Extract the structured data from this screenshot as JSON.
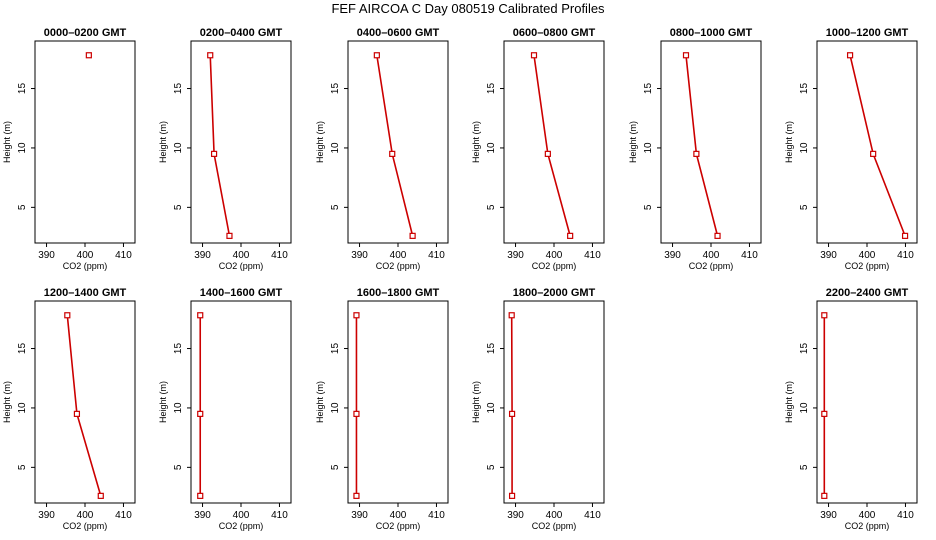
{
  "title": "FEF AIRCOA C  Day 080519  Calibrated Profiles",
  "colors": {
    "series": "#cc0000",
    "axis": "#000000"
  },
  "chart_data": [
    {
      "type": "line",
      "title": "0000–0200 GMT",
      "xlabel": "CO2 (ppm)",
      "ylabel": "Height (m)",
      "xlim": [
        387,
        413
      ],
      "ylim": [
        2,
        19
      ],
      "xticks": [
        390,
        400,
        410
      ],
      "yticks": [
        5,
        10,
        15
      ],
      "x": [
        401.0
      ],
      "y": [
        17.8
      ]
    },
    {
      "type": "line",
      "title": "0200–0400 GMT",
      "xlabel": "CO2 (ppm)",
      "ylabel": "Height (m)",
      "xlim": [
        387,
        413
      ],
      "ylim": [
        2,
        19
      ],
      "xticks": [
        390,
        400,
        410
      ],
      "yticks": [
        5,
        10,
        15
      ],
      "x": [
        392.0,
        393.0,
        397.0
      ],
      "y": [
        17.8,
        9.5,
        2.6
      ]
    },
    {
      "type": "line",
      "title": "0400–0600 GMT",
      "xlabel": "CO2 (ppm)",
      "ylabel": "Height (m)",
      "xlim": [
        387,
        413
      ],
      "ylim": [
        2,
        19
      ],
      "xticks": [
        390,
        400,
        410
      ],
      "yticks": [
        5,
        10,
        15
      ],
      "x": [
        394.5,
        398.5,
        403.8
      ],
      "y": [
        17.8,
        9.5,
        2.6
      ]
    },
    {
      "type": "line",
      "title": "0600–0800 GMT",
      "xlabel": "CO2 (ppm)",
      "ylabel": "Height (m)",
      "xlim": [
        387,
        413
      ],
      "ylim": [
        2,
        19
      ],
      "xticks": [
        390,
        400,
        410
      ],
      "yticks": [
        5,
        10,
        15
      ],
      "x": [
        394.8,
        398.4,
        404.2
      ],
      "y": [
        17.8,
        9.5,
        2.6
      ]
    },
    {
      "type": "line",
      "title": "0800–1000 GMT",
      "xlabel": "CO2 (ppm)",
      "ylabel": "Height (m)",
      "xlim": [
        387,
        413
      ],
      "ylim": [
        2,
        19
      ],
      "xticks": [
        390,
        400,
        410
      ],
      "yticks": [
        5,
        10,
        15
      ],
      "x": [
        393.5,
        396.2,
        401.7
      ],
      "y": [
        17.8,
        9.5,
        2.6
      ]
    },
    {
      "type": "line",
      "title": "1000–1200 GMT",
      "xlabel": "CO2 (ppm)",
      "ylabel": "Height (m)",
      "xlim": [
        387,
        413
      ],
      "ylim": [
        2,
        19
      ],
      "xticks": [
        390,
        400,
        410
      ],
      "yticks": [
        5,
        10,
        15
      ],
      "x": [
        395.6,
        401.6,
        409.9
      ],
      "y": [
        17.8,
        9.5,
        2.6
      ]
    },
    {
      "type": "line",
      "title": "1200–1400 GMT",
      "xlabel": "CO2 (ppm)",
      "ylabel": "Height (m)",
      "xlim": [
        387,
        413
      ],
      "ylim": [
        2,
        19
      ],
      "xticks": [
        390,
        400,
        410
      ],
      "yticks": [
        5,
        10,
        15
      ],
      "x": [
        395.4,
        397.9,
        404.1
      ],
      "y": [
        17.8,
        9.5,
        2.6
      ]
    },
    {
      "type": "line",
      "title": "1400–1600 GMT",
      "xlabel": "CO2 (ppm)",
      "ylabel": "Height (m)",
      "xlim": [
        387,
        413
      ],
      "ylim": [
        2,
        19
      ],
      "xticks": [
        390,
        400,
        410
      ],
      "yticks": [
        5,
        10,
        15
      ],
      "x": [
        389.4,
        389.4,
        389.4
      ],
      "y": [
        17.8,
        9.5,
        2.6
      ]
    },
    {
      "type": "line",
      "title": "1600–1800 GMT",
      "xlabel": "CO2 (ppm)",
      "ylabel": "Height (m)",
      "xlim": [
        387,
        413
      ],
      "ylim": [
        2,
        19
      ],
      "xticks": [
        390,
        400,
        410
      ],
      "yticks": [
        5,
        10,
        15
      ],
      "x": [
        389.2,
        389.2,
        389.2
      ],
      "y": [
        17.8,
        9.5,
        2.6
      ]
    },
    {
      "type": "line",
      "title": "1800–2000 GMT",
      "xlabel": "CO2 (ppm)",
      "ylabel": "Height (m)",
      "xlim": [
        387,
        413
      ],
      "ylim": [
        2,
        19
      ],
      "xticks": [
        390,
        400,
        410
      ],
      "yticks": [
        5,
        10,
        15
      ],
      "x": [
        389.0,
        389.1,
        389.1
      ],
      "y": [
        17.8,
        9.5,
        2.6
      ]
    },
    {
      "type": "line",
      "title": "2200–2400 GMT",
      "xlabel": "CO2 (ppm)",
      "ylabel": "Height (m)",
      "xlim": [
        387,
        413
      ],
      "ylim": [
        2,
        19
      ],
      "xticks": [
        390,
        400,
        410
      ],
      "yticks": [
        5,
        10,
        15
      ],
      "x": [
        388.9,
        388.9,
        388.9
      ],
      "y": [
        17.8,
        9.5,
        2.6
      ]
    }
  ]
}
